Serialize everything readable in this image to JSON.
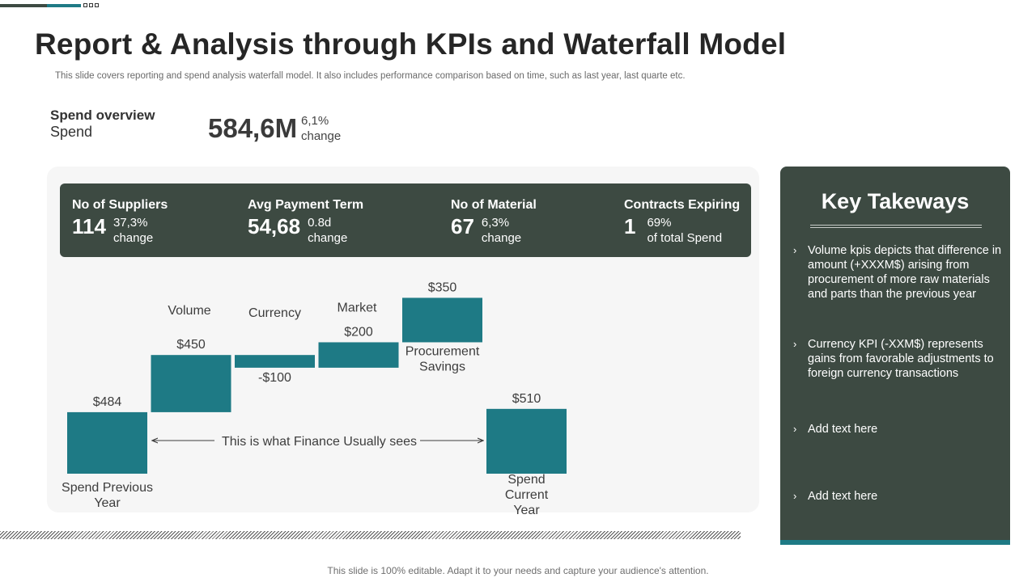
{
  "colors": {
    "dark": "#3d4a42",
    "teal": "#1e7a85",
    "text": "#3d3d3d"
  },
  "page": {
    "title": "Report & Analysis through KPIs and Waterfall Model",
    "subtitle": "This slide covers reporting and spend analysis waterfall model. It also includes performance comparison based on time, such as last year, last quarte etc.",
    "footer": "This slide is 100% editable. Adapt it to your needs and capture your audience's attention."
  },
  "overview": {
    "label": "Spend overview",
    "sublabel": "Spend",
    "value": "584,6M",
    "change_pct": "6,1%",
    "change_word": "change"
  },
  "kpis": [
    {
      "label": "No of Suppliers",
      "value": "114",
      "line1": "37,3%",
      "line2": "change"
    },
    {
      "label": "Avg Payment Term",
      "value": "54,68",
      "line1": "0.8d",
      "line2": "change"
    },
    {
      "label": "No of Material",
      "value": "67",
      "line1": "6,3%",
      "line2": "change"
    },
    {
      "label": "Contracts Expiring",
      "value": "1",
      "line1": "69%",
      "line2": "of total Spend"
    }
  ],
  "chart_data": {
    "type": "waterfall",
    "title": "",
    "unit": "$",
    "steps": [
      {
        "name": "Spend Previous Year",
        "label_lines": [
          "Spend Previous",
          "Year"
        ],
        "value": 484,
        "value_label": "$484",
        "kind": "total"
      },
      {
        "name": "Volume",
        "label_lines": [
          "Volume"
        ],
        "value": 450,
        "value_label": "$450",
        "kind": "delta"
      },
      {
        "name": "Currency",
        "label_lines": [
          "Currency"
        ],
        "value": -100,
        "value_label": "-$100",
        "kind": "delta"
      },
      {
        "name": "Market",
        "label_lines": [
          "Market"
        ],
        "value": 200,
        "value_label": "$200",
        "kind": "delta"
      },
      {
        "name": "Procurement Savings",
        "label_lines": [
          "Procurement",
          "Savings"
        ],
        "value": 350,
        "value_label": "$350",
        "kind": "delta"
      },
      {
        "name": "Spend Current Year",
        "label_lines": [
          "Spend",
          "Current",
          "Year"
        ],
        "value": 510,
        "value_label": "$510",
        "kind": "total"
      }
    ],
    "annotation": "This is what Finance Usually sees"
  },
  "takeaways": {
    "title": "Key Takeways",
    "items": [
      "Volume kpis depicts that difference in amount (+XXXM$) arising from procurement of more raw materials and parts than the previous year",
      "Currency KPI (-XXM$) represents gains from favorable adjustments to foreign currency transactions",
      "Add text here",
      "Add text here"
    ],
    "chevron": "›"
  }
}
